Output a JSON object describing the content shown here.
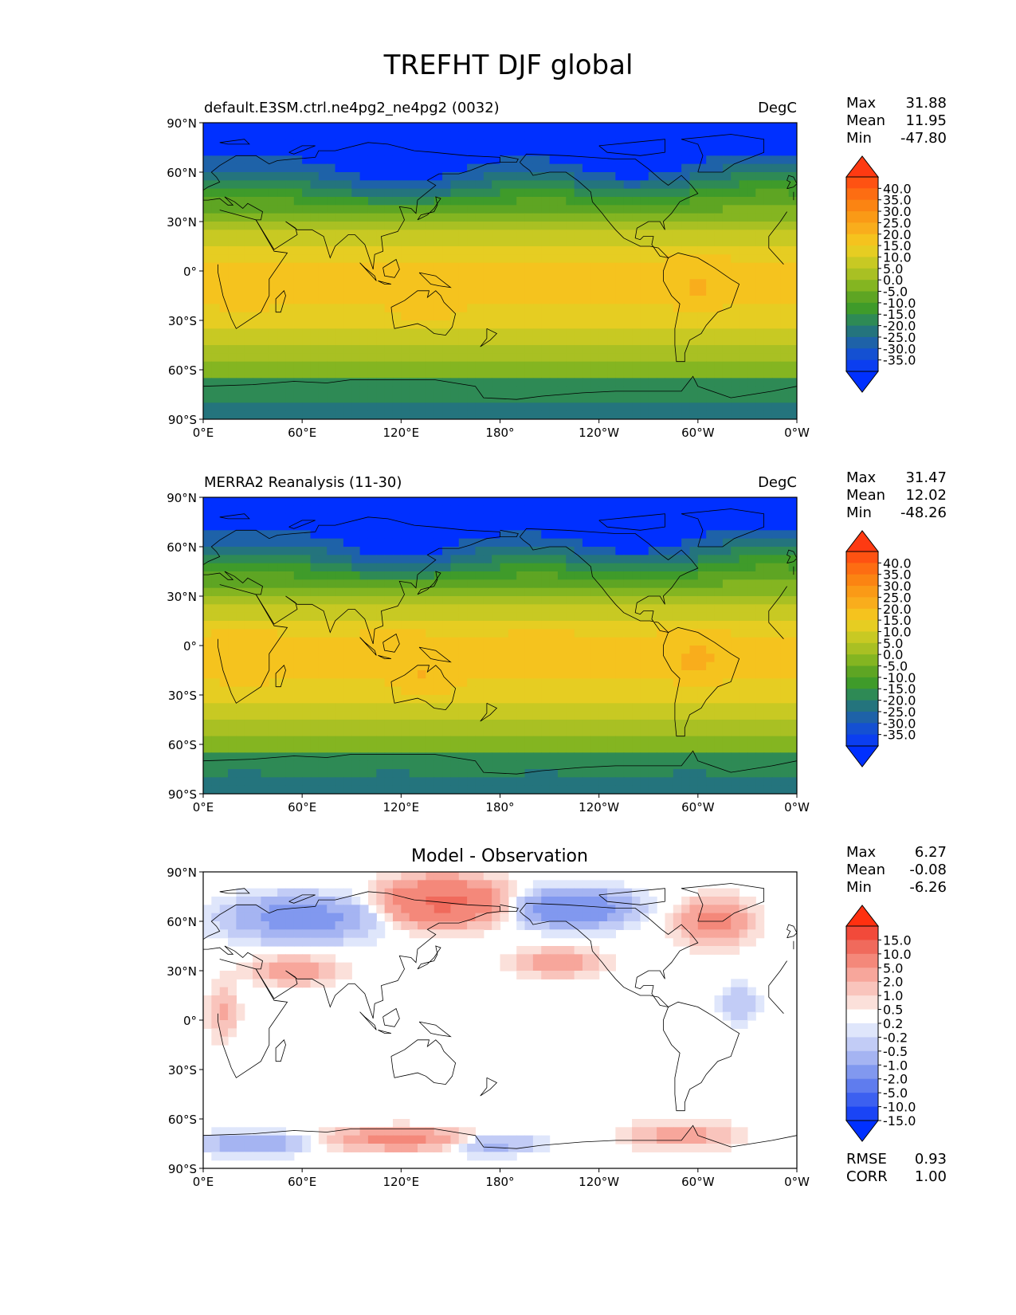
{
  "figure": {
    "title": "TREFHT DJF global"
  },
  "axes": {
    "lat_ticks": [
      "90°N",
      "60°N",
      "30°N",
      "0°",
      "30°S",
      "60°S",
      "90°S"
    ],
    "lon_ticks": [
      "0°E",
      "60°E",
      "120°E",
      "180°",
      "120°W",
      "60°W",
      "0°W"
    ]
  },
  "panels": [
    {
      "id": "model",
      "title_left": "default.E3SM.ctrl.ne4pg2_ne4pg2 (0032)",
      "title_center": "",
      "units": "DegC",
      "stats": [
        {
          "label": "Max",
          "value": "31.88"
        },
        {
          "label": "Mean",
          "value": "11.95"
        },
        {
          "label": "Min",
          "value": "-47.80"
        }
      ],
      "colorbar_labels": [
        "40.0",
        "35.0",
        "30.0",
        "25.0",
        "20.0",
        "15.0",
        "10.0",
        "5.0",
        "0.0",
        "-5.0",
        "-10.0",
        "-15.0",
        "-20.0",
        "-25.0",
        "-30.0",
        "-35.0"
      ],
      "colorbar_colors": [
        "#fe3a12",
        "#fe5212",
        "#fd6d12",
        "#fb8412",
        "#fa9a16",
        "#f9ad1c",
        "#f5c31e",
        "#e6cd22",
        "#c8c923",
        "#a9c023",
        "#84b521",
        "#5ea523",
        "#3f9b2a",
        "#2e8a55",
        "#24747d",
        "#1e62a8",
        "#1450d2",
        "#0b3ef0",
        "#0030ff"
      ],
      "extra_stats": []
    },
    {
      "id": "obs",
      "title_left": "MERRA2 Reanalysis (11-30)",
      "title_center": "",
      "units": "DegC",
      "stats": [
        {
          "label": "Max",
          "value": "31.47"
        },
        {
          "label": "Mean",
          "value": "12.02"
        },
        {
          "label": "Min",
          "value": "-48.26"
        }
      ],
      "colorbar_labels": [
        "40.0",
        "35.0",
        "30.0",
        "25.0",
        "20.0",
        "15.0",
        "10.0",
        "5.0",
        "0.0",
        "-5.0",
        "-10.0",
        "-15.0",
        "-20.0",
        "-25.0",
        "-30.0",
        "-35.0"
      ],
      "colorbar_colors": [
        "#fe3a12",
        "#fe5212",
        "#fd6d12",
        "#fb8412",
        "#fa9a16",
        "#f9ad1c",
        "#f5c31e",
        "#e6cd22",
        "#c8c923",
        "#a9c023",
        "#84b521",
        "#5ea523",
        "#3f9b2a",
        "#2e8a55",
        "#24747d",
        "#1e62a8",
        "#1450d2",
        "#0b3ef0",
        "#0030ff"
      ],
      "extra_stats": []
    },
    {
      "id": "diff",
      "title_left": "",
      "title_center": "Model - Observation",
      "units": "",
      "stats": [
        {
          "label": "Max",
          "value": "6.27"
        },
        {
          "label": "Mean",
          "value": "-0.08"
        },
        {
          "label": "Min",
          "value": "-6.26"
        }
      ],
      "colorbar_labels": [
        "15.0",
        "10.0",
        "5.0",
        "2.0",
        "1.0",
        "0.5",
        "0.2",
        "-0.2",
        "-0.5",
        "-1.0",
        "-2.0",
        "-5.0",
        "-10.0",
        "-15.0"
      ],
      "colorbar_colors": [
        "#ff3010",
        "#f24a3a",
        "#f06a5c",
        "#f4887a",
        "#f7a69b",
        "#f9c4bc",
        "#fbe0da",
        "#ffffff",
        "#dfe6fb",
        "#c2ccf6",
        "#a5b4f2",
        "#8198ef",
        "#5f7cee",
        "#3c60f0",
        "#1a44f5",
        "#0030ff"
      ],
      "extra_stats": [
        {
          "label": "RMSE",
          "value": "0.93"
        },
        {
          "label": "CORR",
          "value": "1.00"
        }
      ]
    }
  ]
}
